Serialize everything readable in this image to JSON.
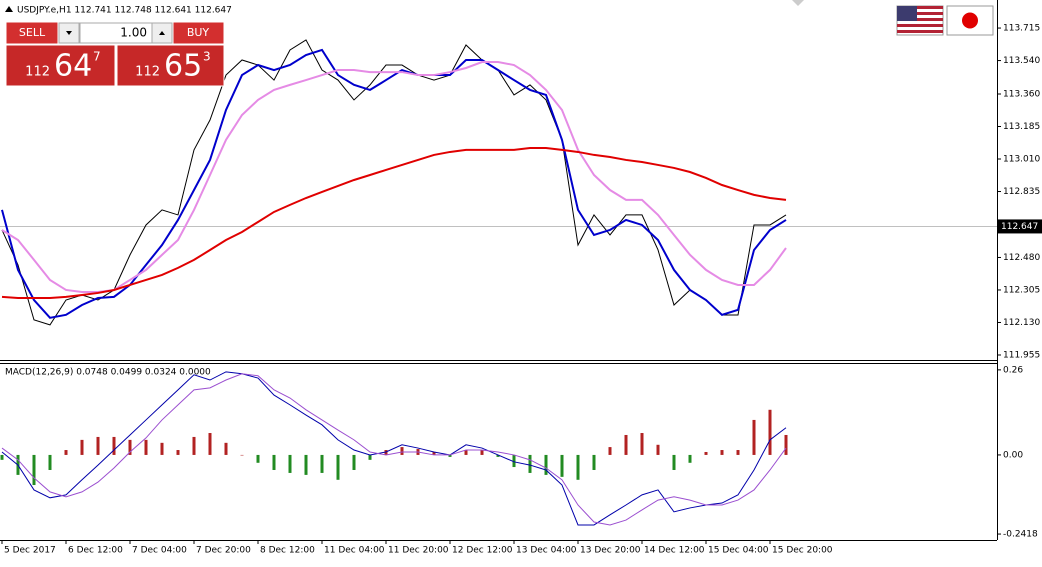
{
  "trade_panel": {
    "sell": "SELL",
    "lot": "1.00",
    "buy": "BUY",
    "bid": {
      "big": "112",
      "pips": "64",
      "fraction": "7"
    },
    "ask": {
      "big": "112",
      "pips": "65",
      "fraction": "3"
    }
  },
  "chart_data": [
    {
      "type": "line",
      "title": "USDJPY.e,H1  112.741 112.748 112.641 112.647",
      "ylim": [
        111.928,
        113.866
      ],
      "yticks": [
        113.715,
        {
          "value": 113.54,
          "label": "113.540"
        },
        {
          "value": 113.36,
          "label": "113.360"
        },
        113.185,
        {
          "value": 113.01,
          "label": "113.010"
        },
        112.835,
        {
          "value": 112.48,
          "label": "112.480"
        },
        112.305,
        {
          "value": 112.13,
          "label": "112.130"
        },
        111.955
      ],
      "current_price": 112.647,
      "series": [
        {
          "color": "#000000",
          "values": [
            112.628,
            112.44,
            112.144,
            112.117,
            112.251,
            112.278,
            112.251,
            112.305,
            112.494,
            112.655,
            112.736,
            112.709,
            113.059,
            113.22,
            113.462,
            113.543,
            113.516,
            113.435,
            113.597,
            113.651,
            113.489,
            113.435,
            113.328,
            113.409,
            113.516,
            113.516,
            113.462,
            113.435,
            113.462,
            113.624,
            113.543,
            113.489,
            113.355,
            113.409,
            113.328,
            113.113,
            112.547,
            112.709,
            112.601,
            112.709,
            112.709,
            112.521,
            112.224,
            112.305,
            112.251,
            112.17,
            112.17,
            112.655,
            112.655,
            112.709
          ]
        },
        {
          "color": "#0000cc",
          "values": [
            112.736,
            112.413,
            112.251,
            112.155,
            112.171,
            112.224,
            112.262,
            112.268,
            112.332,
            112.44,
            112.547,
            112.682,
            112.843,
            113.005,
            113.274,
            113.462,
            113.516,
            113.489,
            113.516,
            113.57,
            113.597,
            113.462,
            113.409,
            113.382,
            113.435,
            113.489,
            113.462,
            113.462,
            113.462,
            113.543,
            113.543,
            113.489,
            113.435,
            113.382,
            113.355,
            113.113,
            112.736,
            112.601,
            112.628,
            112.682,
            112.655,
            112.574,
            112.413,
            112.305,
            112.251,
            112.171,
            112.198,
            112.52,
            112.628,
            112.682
          ]
        },
        {
          "color": "#e58be5",
          "values": [
            112.628,
            112.574,
            112.467,
            112.359,
            112.305,
            112.294,
            112.294,
            112.305,
            112.359,
            112.413,
            112.494,
            112.574,
            112.736,
            112.924,
            113.113,
            113.247,
            113.328,
            113.382,
            113.409,
            113.435,
            113.462,
            113.489,
            113.489,
            113.478,
            113.478,
            113.478,
            113.462,
            113.462,
            113.478,
            113.5,
            113.532,
            113.532,
            113.516,
            113.462,
            113.382,
            113.274,
            113.059,
            112.924,
            112.843,
            112.79,
            112.79,
            112.709,
            112.601,
            112.494,
            112.413,
            112.359,
            112.332,
            112.332,
            112.413,
            112.531
          ]
        },
        {
          "color": "#e00000",
          "values": [
            112.268,
            112.262,
            112.262,
            112.262,
            112.268,
            112.278,
            112.289,
            112.305,
            112.332,
            112.359,
            112.386,
            112.424,
            112.467,
            112.52,
            112.574,
            112.617,
            112.671,
            112.725,
            112.763,
            112.8,
            112.833,
            112.865,
            112.897,
            112.924,
            112.951,
            112.978,
            113.005,
            113.032,
            113.048,
            113.059,
            113.059,
            113.059,
            113.059,
            113.069,
            113.069,
            113.059,
            113.048,
            113.032,
            113.021,
            113.005,
            112.994,
            112.978,
            112.962,
            112.94,
            112.908,
            112.87,
            112.843,
            112.817,
            112.8,
            112.79
          ]
        }
      ]
    },
    {
      "type": "macd",
      "title": "MACD(12,26,9) 0.0748 0.0499 0.0324 0.0000",
      "ylim": [
        -0.26,
        0.281
      ],
      "yticks": [
        0.26,
        {
          "value": 0,
          "label": "0.00"
        },
        -0.2418
      ],
      "categories": [
        "5 Dec 2017",
        null,
        null,
        null,
        "6 Dec 12:00",
        null,
        null,
        null,
        "7 Dec 04:00",
        null,
        null,
        null,
        "7 Dec 20:00",
        null,
        null,
        null,
        "8 Dec 12:00",
        null,
        null,
        null,
        "11 Dec 04:00",
        null,
        null,
        null,
        "11 Dec 20:00",
        null,
        null,
        null,
        "12 Dec 12:00",
        null,
        null,
        null,
        "13 Dec 04:00",
        null,
        null,
        null,
        "13 Dec 20:00",
        null,
        null,
        null,
        "14 Dec 12:00",
        null,
        null,
        null,
        "15 Dec 04:00",
        null,
        null,
        null,
        "15 Dec 20:00",
        null
      ],
      "series": [
        {
          "type": "bar",
          "up_color": "#b22222",
          "down_color": "#228b22",
          "values": [
            -0.015,
            -0.061,
            -0.092,
            -0.046,
            0.015,
            0.046,
            0.055,
            0.055,
            0.046,
            0.046,
            0.037,
            0.015,
            0.055,
            0.067,
            0.037,
            0,
            -0.024,
            -0.046,
            -0.055,
            -0.061,
            -0.055,
            -0.076,
            -0.046,
            -0.015,
            0.015,
            0.024,
            0.018,
            0.009,
            -0.006,
            0.015,
            0.015,
            -0.006,
            -0.037,
            -0.055,
            -0.061,
            -0.067,
            -0.076,
            -0.046,
            0.024,
            0.061,
            0.067,
            0.031,
            -0.046,
            -0.024,
            0.009,
            0.015,
            0.015,
            0.107,
            0.138,
            0.061
          ]
        },
        {
          "type": "line",
          "color": "#0000aa",
          "values": [
            0.009,
            -0.031,
            -0.107,
            -0.131,
            -0.122,
            -0.076,
            -0.031,
            0.015,
            0.061,
            0.107,
            0.153,
            0.199,
            0.245,
            0.229,
            0.254,
            0.248,
            0.235,
            0.183,
            0.153,
            0.122,
            0.092,
            0.046,
            0.015,
            0,
            0.009,
            0.031,
            0.021,
            0.009,
            0,
            0.031,
            0.021,
            0,
            -0.021,
            -0.031,
            -0.046,
            -0.092,
            -0.214,
            -0.214,
            -0.183,
            -0.153,
            -0.122,
            -0.107,
            -0.174,
            -0.162,
            -0.153,
            -0.147,
            -0.122,
            -0.046,
            0.046,
            0.083
          ]
        },
        {
          "type": "line",
          "color": "#9b4fd0",
          "values": [
            0.021,
            -0.015,
            -0.07,
            -0.113,
            -0.128,
            -0.113,
            -0.083,
            -0.04,
            0.009,
            0.052,
            0.107,
            0.153,
            0.199,
            0.205,
            0.229,
            0.248,
            0.242,
            0.199,
            0.174,
            0.138,
            0.107,
            0.076,
            0.046,
            0.009,
            0,
            0.009,
            0.009,
            0,
            0,
            0.015,
            0.015,
            0.009,
            0,
            -0.015,
            -0.04,
            -0.076,
            -0.153,
            -0.205,
            -0.214,
            -0.199,
            -0.168,
            -0.138,
            -0.128,
            -0.138,
            -0.153,
            -0.153,
            -0.138,
            -0.107,
            -0.046,
            0.021
          ]
        }
      ]
    }
  ]
}
